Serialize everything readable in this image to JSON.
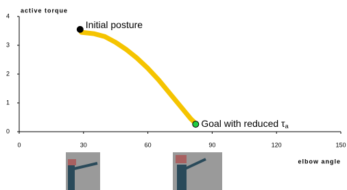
{
  "chart_data": {
    "type": "line",
    "x_label": "elbow angle",
    "y_label": "active torque",
    "xlim": [
      0,
      150
    ],
    "xticks": [
      0,
      30,
      60,
      90,
      120,
      150
    ],
    "ylim": [
      0,
      4
    ],
    "yticks": [
      0,
      1,
      2,
      3,
      4
    ],
    "series": [
      {
        "color": "#f5c400",
        "x": [
          29,
          35,
          40,
          45,
          50,
          55,
          60,
          65,
          70,
          75,
          80,
          82.5
        ],
        "values": [
          3.45,
          3.4,
          3.3,
          3.1,
          2.85,
          2.55,
          2.2,
          1.8,
          1.35,
          0.9,
          0.45,
          0.27
        ]
      }
    ],
    "points": [
      {
        "text": "Initial posture",
        "x": 28.4,
        "y": 3.55,
        "color": "#000000"
      },
      {
        "text": "Goal with reduced τ",
        "subscript": "a",
        "x": 82.3,
        "y": 0.26,
        "color": "#22cc44"
      }
    ]
  }
}
